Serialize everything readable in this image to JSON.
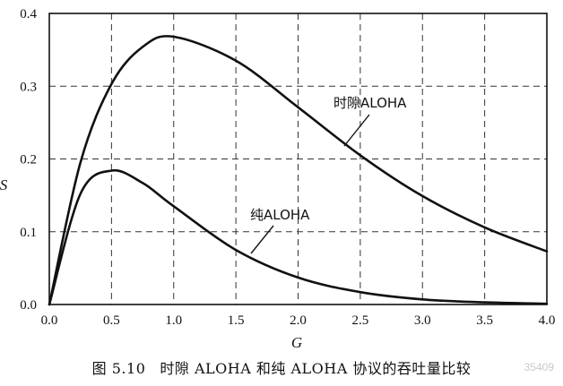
{
  "chart_data": {
    "type": "line",
    "xlabel": "G",
    "ylabel": "S",
    "xlim": [
      0,
      4.0
    ],
    "ylim": [
      0,
      0.4
    ],
    "xticks": [
      "0.0",
      "0.5",
      "1.0",
      "1.5",
      "2.0",
      "2.5",
      "3.0",
      "3.5",
      "4.0"
    ],
    "yticks": [
      "0.0",
      "0.1",
      "0.2",
      "0.3",
      "0.4"
    ],
    "grid": true,
    "series": [
      {
        "name": "时隙ALOHA",
        "x": [
          0,
          0.25,
          0.5,
          0.75,
          1.0,
          1.5,
          2.0,
          2.5,
          3.0,
          3.5,
          4.0
        ],
        "y": [
          0,
          0.195,
          0.303,
          0.354,
          0.368,
          0.335,
          0.271,
          0.205,
          0.149,
          0.106,
          0.073
        ]
      },
      {
        "name": "纯ALOHA",
        "x": [
          0,
          0.25,
          0.5,
          0.75,
          1.0,
          1.5,
          2.0,
          2.5,
          3.0,
          3.5,
          4.0
        ],
        "y": [
          0,
          0.152,
          0.184,
          0.167,
          0.135,
          0.075,
          0.037,
          0.017,
          0.007,
          0.003,
          0.001
        ]
      }
    ]
  },
  "caption": {
    "number": "图 5.10",
    "text": "时隙 ALOHA 和纯 ALOHA 协议的吞吐量比较"
  },
  "watermark": "35409"
}
